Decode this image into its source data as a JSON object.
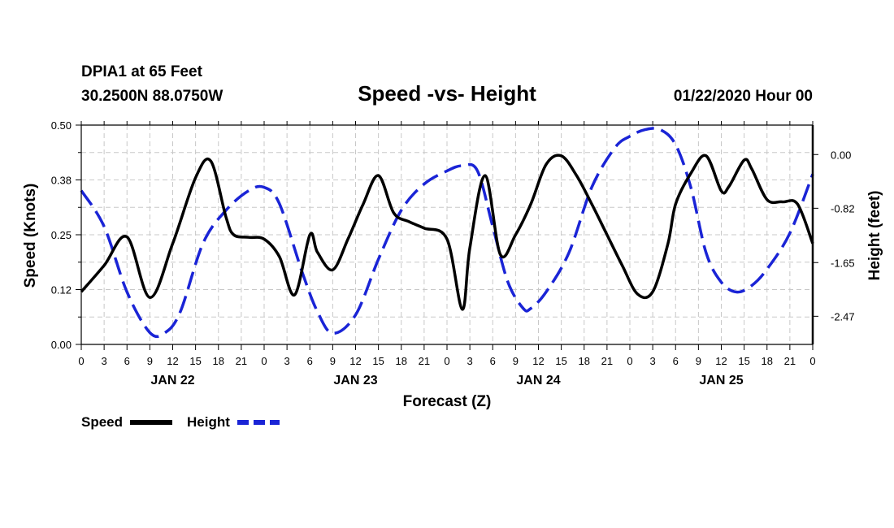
{
  "header": {
    "station": "DPIA1 at 65 Feet",
    "coords": "30.2500N 88.0750W",
    "title": "Speed -vs- Height",
    "datetime": "01/22/2020 Hour 00"
  },
  "legend": {
    "speed_label": "Speed",
    "height_label": "Height"
  },
  "chart_data": {
    "type": "line",
    "title": "Speed -vs- Height",
    "xlabel": "Forecast (Z)",
    "ylabel": "Speed (Knots)",
    "y2label": "Height (feet)",
    "x_unit": "forecast hour",
    "xlim": [
      0,
      96
    ],
    "ylim": [
      0,
      0.5
    ],
    "y2lim": [
      -2.9,
      0.45
    ],
    "grid": true,
    "x_tick_labels": [
      "0",
      "3",
      "6",
      "9",
      "12",
      "15",
      "18",
      "21",
      "0",
      "3",
      "6",
      "9",
      "12",
      "15",
      "18",
      "21",
      "0",
      "3",
      "6",
      "9",
      "12",
      "15",
      "18",
      "21",
      "0",
      "3",
      "6",
      "9",
      "12",
      "15",
      "18",
      "21",
      "0"
    ],
    "day_labels": [
      {
        "label": "JAN 22",
        "hour": 12
      },
      {
        "label": "JAN 23",
        "hour": 36
      },
      {
        "label": "JAN 24",
        "hour": 60
      },
      {
        "label": "JAN 25",
        "hour": 84
      }
    ],
    "y_ticks": [
      "0.00",
      "0.12",
      "0.25",
      "0.38",
      "0.50"
    ],
    "y2_ticks": [
      "0.00",
      "-0.82",
      "-1.65",
      "-2.47"
    ],
    "legend_position": "bottom-left",
    "series": [
      {
        "name": "Speed",
        "axis": "left",
        "color": "#000000",
        "dash": "solid",
        "x": [
          0,
          3,
          6,
          9,
          12,
          15,
          17,
          19,
          20,
          22,
          24,
          26,
          28,
          30,
          31,
          33,
          35,
          37,
          39,
          41,
          43,
          45,
          48,
          50,
          51,
          53,
          55,
          57,
          59,
          61,
          63,
          65,
          67,
          69,
          71,
          73,
          75,
          77,
          78,
          80,
          82,
          84,
          85,
          87,
          88,
          90,
          92,
          94,
          96
        ],
        "y": [
          0.12,
          0.18,
          0.245,
          0.107,
          0.23,
          0.38,
          0.418,
          0.29,
          0.25,
          0.244,
          0.24,
          0.2,
          0.113,
          0.25,
          0.21,
          0.17,
          0.24,
          0.32,
          0.385,
          0.3,
          0.28,
          0.265,
          0.24,
          0.08,
          0.22,
          0.385,
          0.205,
          0.25,
          0.32,
          0.41,
          0.43,
          0.385,
          0.32,
          0.25,
          0.18,
          0.115,
          0.12,
          0.23,
          0.32,
          0.39,
          0.43,
          0.35,
          0.36,
          0.42,
          0.4,
          0.33,
          0.325,
          0.32,
          0.23
        ]
      },
      {
        "name": "Height",
        "axis": "right",
        "color": "#1a24d6",
        "dash": "dashed",
        "x": [
          0,
          3,
          6,
          9,
          11,
          13,
          16,
          19,
          22,
          24,
          26,
          29,
          31,
          33,
          36,
          39,
          42,
          45,
          48,
          50,
          52,
          54,
          56,
          58,
          59,
          61,
          64,
          67,
          70,
          72,
          74,
          76,
          78,
          80,
          82,
          84,
          86,
          88,
          90,
          93,
          96
        ],
        "y": [
          -0.55,
          -1.1,
          -2.1,
          -2.72,
          -2.72,
          -2.4,
          -1.35,
          -0.85,
          -0.55,
          -0.5,
          -0.75,
          -1.8,
          -2.4,
          -2.73,
          -2.45,
          -1.6,
          -0.85,
          -0.45,
          -0.25,
          -0.17,
          -0.25,
          -1.1,
          -1.95,
          -2.35,
          -2.35,
          -2.1,
          -1.5,
          -0.5,
          0.1,
          0.28,
          0.38,
          0.38,
          0.15,
          -0.5,
          -1.5,
          -1.95,
          -2.1,
          -2.0,
          -1.75,
          -1.2,
          -0.3
        ]
      }
    ]
  }
}
